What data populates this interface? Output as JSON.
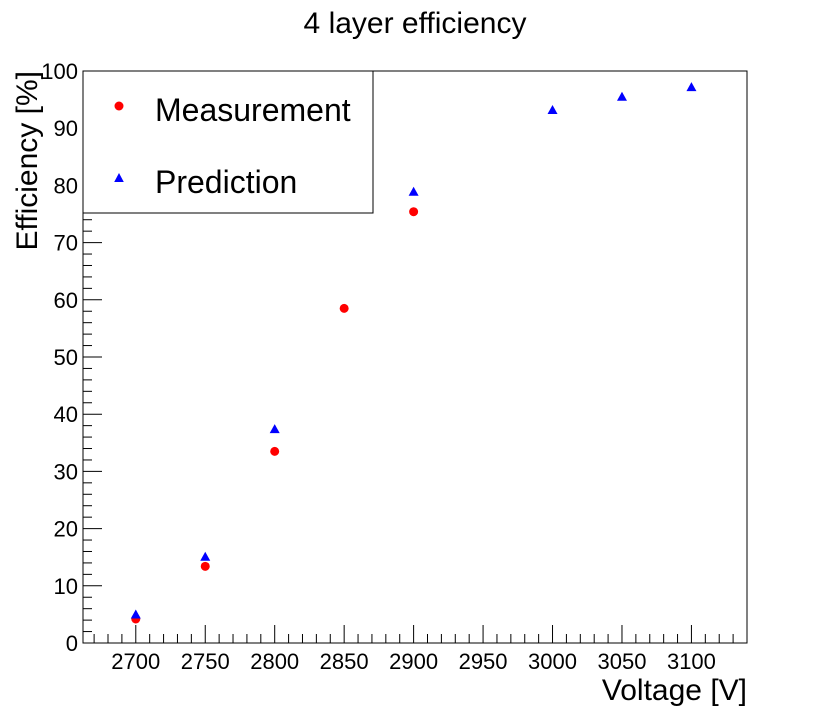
{
  "chart_data": {
    "type": "scatter",
    "title": "4 layer efficiency",
    "xlabel": "Voltage [V]",
    "ylabel": "Efficiency [%]",
    "xlim": [
      2662,
      3140
    ],
    "ylim": [
      0,
      100
    ],
    "x_ticks": [
      2700,
      2750,
      2800,
      2850,
      2900,
      2950,
      3000,
      3050,
      3100
    ],
    "x_tick_labels": [
      "2700",
      "2750",
      "2800",
      "2850",
      "2900",
      "2950",
      "3000",
      "3050",
      "3100"
    ],
    "x_minor_step": 10,
    "y_ticks": [
      0,
      10,
      20,
      30,
      40,
      50,
      60,
      70,
      80,
      90,
      100
    ],
    "y_tick_labels": [
      "0",
      "10",
      "20",
      "30",
      "40",
      "50",
      "60",
      "70",
      "80",
      "90",
      "100"
    ],
    "y_minor_step": 2,
    "grid": false,
    "legend_position": "top-left",
    "series": [
      {
        "name": "Measurement",
        "marker": "circle",
        "color": "#ff0000",
        "x": [
          2700,
          2750,
          2800,
          2850,
          2900
        ],
        "y": [
          4.2,
          13.4,
          33.5,
          58.5,
          75.4
        ]
      },
      {
        "name": "Prediction",
        "marker": "triangle",
        "color": "#0000ff",
        "x": [
          2700,
          2750,
          2800,
          2900,
          3000,
          3050,
          3100
        ],
        "y": [
          4.9,
          15.0,
          37.3,
          78.8,
          93.1,
          95.4,
          97.1
        ]
      }
    ]
  }
}
